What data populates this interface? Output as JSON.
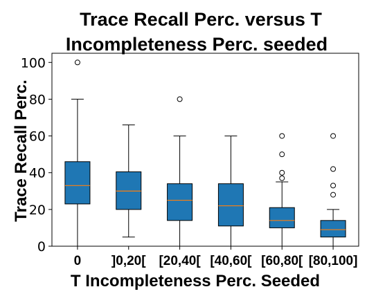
{
  "chart_data": {
    "type": "box",
    "title_lines": [
      "Trace Recall Perc. versus T",
      "Incompleteness Perc. seeded"
    ],
    "xlabel": "T Incompleteness Perc. Seeded",
    "ylabel": "Trace Recall Perc.",
    "ylim": [
      0,
      105
    ],
    "yticks": [
      0,
      20,
      40,
      60,
      80,
      100
    ],
    "grid": false,
    "categories": [
      "0",
      "]0,20[",
      "[20,40[",
      "[40,60[",
      "[60,80[",
      "[80,100]"
    ],
    "boxes": [
      {
        "whisker_low": 0,
        "q1": 23,
        "median": 33,
        "q3": 46,
        "whisker_high": 80,
        "outliers": [
          100
        ]
      },
      {
        "whisker_low": 5,
        "q1": 20,
        "median": 30,
        "q3": 40.5,
        "whisker_high": 66,
        "outliers": []
      },
      {
        "whisker_low": 0,
        "q1": 14,
        "median": 25,
        "q3": 34,
        "whisker_high": 60,
        "outliers": [
          80
        ]
      },
      {
        "whisker_low": 0,
        "q1": 11,
        "median": 22,
        "q3": 34,
        "whisker_high": 60,
        "outliers": []
      },
      {
        "whisker_low": 0,
        "q1": 10,
        "median": 14,
        "q3": 21,
        "whisker_high": 35,
        "outliers": [
          37,
          40,
          50,
          60
        ]
      },
      {
        "whisker_low": 0,
        "q1": 5,
        "median": 9,
        "q3": 14,
        "whisker_high": 20,
        "outliers": [
          28,
          33,
          42,
          60
        ]
      }
    ],
    "colors": {
      "box_fill": "#1f77b4",
      "median": "#ff7f0e",
      "stroke": "#000000"
    }
  }
}
